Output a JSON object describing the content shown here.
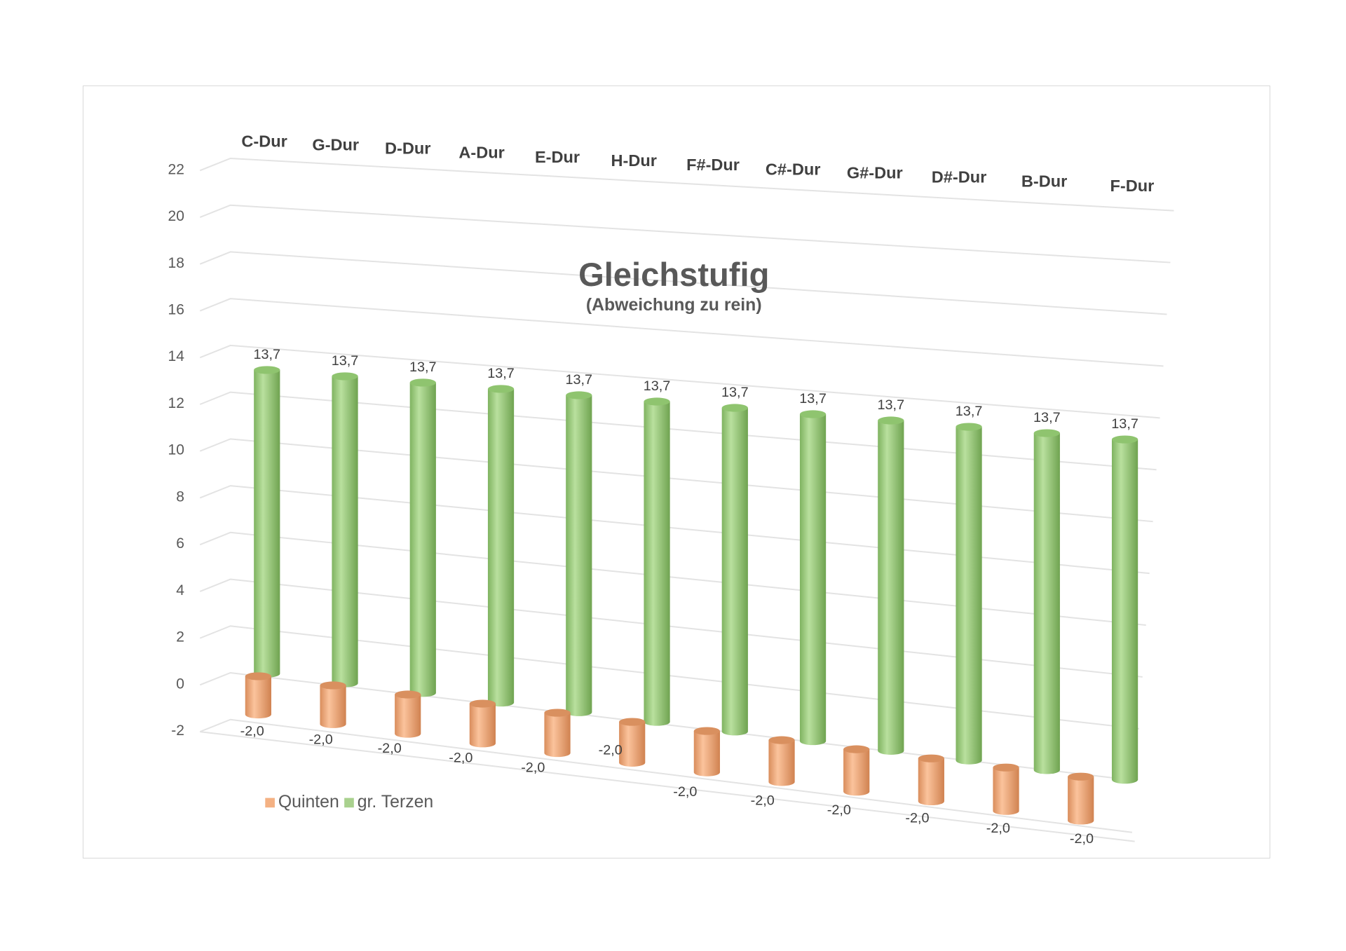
{
  "chart_data": {
    "type": "bar",
    "subtype": "3d-cylinder",
    "title": "Gleichstufig",
    "subtitle": "(Abweichung zu rein)",
    "categories": [
      "C-Dur",
      "G-Dur",
      "D-Dur",
      "A-Dur",
      "E-Dur",
      "H-Dur",
      "F#-Dur",
      "C#-Dur",
      "G#-Dur",
      "D#-Dur",
      "B-Dur",
      "F-Dur"
    ],
    "series": [
      {
        "name": "Quinten",
        "color": "#f4b183",
        "values": [
          -2.0,
          -2.0,
          -2.0,
          -2.0,
          -2.0,
          -2.0,
          -2.0,
          -2.0,
          -2.0,
          -2.0,
          -2.0,
          -2.0
        ],
        "labels": [
          "-2,0",
          "-2,0",
          "-2,0",
          "-2,0",
          "-2,0",
          "-2,0",
          "-2,0",
          "-2,0",
          "-2,0",
          "-2,0",
          "-2,0",
          "-2,0"
        ]
      },
      {
        "name": "gr. Terzen",
        "color": "#a9d18e",
        "values": [
          13.7,
          13.7,
          13.7,
          13.7,
          13.7,
          13.7,
          13.7,
          13.7,
          13.7,
          13.7,
          13.7,
          13.7
        ],
        "labels": [
          "13,7",
          "13,7",
          "13,7",
          "13,7",
          "13,7",
          "13,7",
          "13,7",
          "13,7",
          "13,7",
          "13,7",
          "13,7",
          "13,7"
        ]
      }
    ],
    "yticks": [
      "-2",
      "0",
      "2",
      "4",
      "6",
      "8",
      "10",
      "12",
      "14",
      "16",
      "18",
      "20",
      "22"
    ],
    "ylim": [
      -2,
      22
    ],
    "grid": true,
    "legend": "bottom-left",
    "xlabel": "",
    "ylabel": ""
  }
}
